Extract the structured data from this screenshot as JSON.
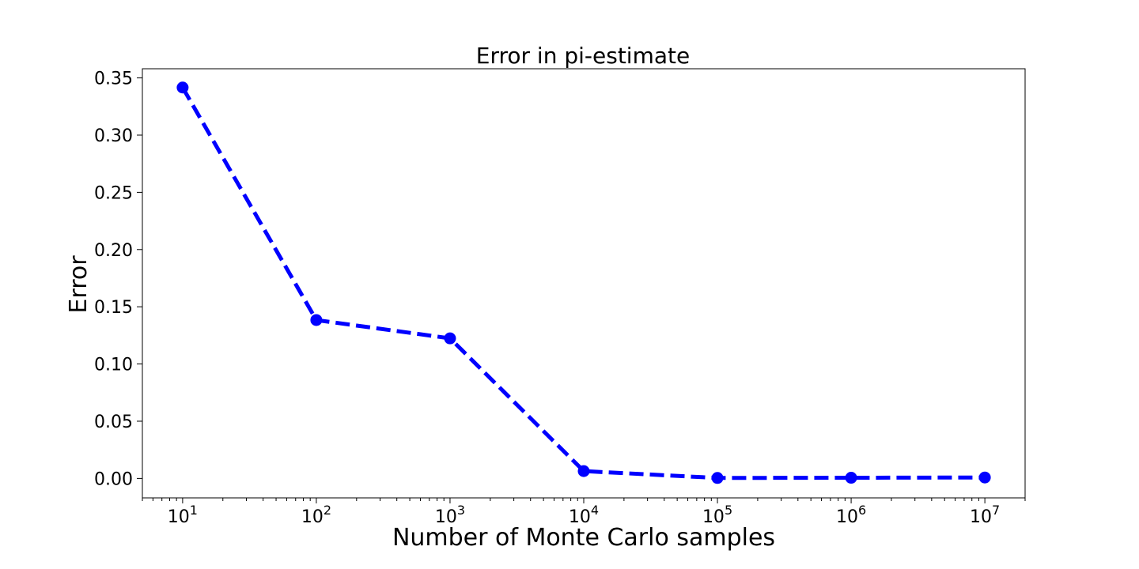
{
  "chart_data": {
    "type": "line",
    "title": "Error in pi-estimate",
    "xlabel": "Number of Monte Carlo samples",
    "ylabel": "Error",
    "xscale": "log",
    "yscale": "linear",
    "xlim": [
      5,
      20000000
    ],
    "ylim": [
      -0.017,
      0.358
    ],
    "grid": false,
    "legend": "none",
    "x": [
      10,
      100,
      1000,
      10000,
      100000,
      1000000,
      10000000
    ],
    "series": [
      {
        "values": [
          0.3416,
          0.1384,
          0.1224,
          0.0064,
          0.0004,
          0.0006,
          0.0008
        ],
        "color": "#0000ff",
        "linestyle": "dashed",
        "marker": "circle"
      }
    ],
    "xticks": [
      {
        "value": 10,
        "base": "10",
        "exp": "1"
      },
      {
        "value": 100,
        "base": "10",
        "exp": "2"
      },
      {
        "value": 1000,
        "base": "10",
        "exp": "3"
      },
      {
        "value": 10000,
        "base": "10",
        "exp": "4"
      },
      {
        "value": 100000,
        "base": "10",
        "exp": "5"
      },
      {
        "value": 1000000,
        "base": "10",
        "exp": "6"
      },
      {
        "value": 10000000,
        "base": "10",
        "exp": "7"
      }
    ],
    "yticks": [
      {
        "value": 0.0,
        "label": "0.00"
      },
      {
        "value": 0.05,
        "label": "0.05"
      },
      {
        "value": 0.1,
        "label": "0.10"
      },
      {
        "value": 0.15,
        "label": "0.15"
      },
      {
        "value": 0.2,
        "label": "0.20"
      },
      {
        "value": 0.25,
        "label": "0.25"
      },
      {
        "value": 0.3,
        "label": "0.30"
      },
      {
        "value": 0.35,
        "label": "0.35"
      }
    ]
  }
}
